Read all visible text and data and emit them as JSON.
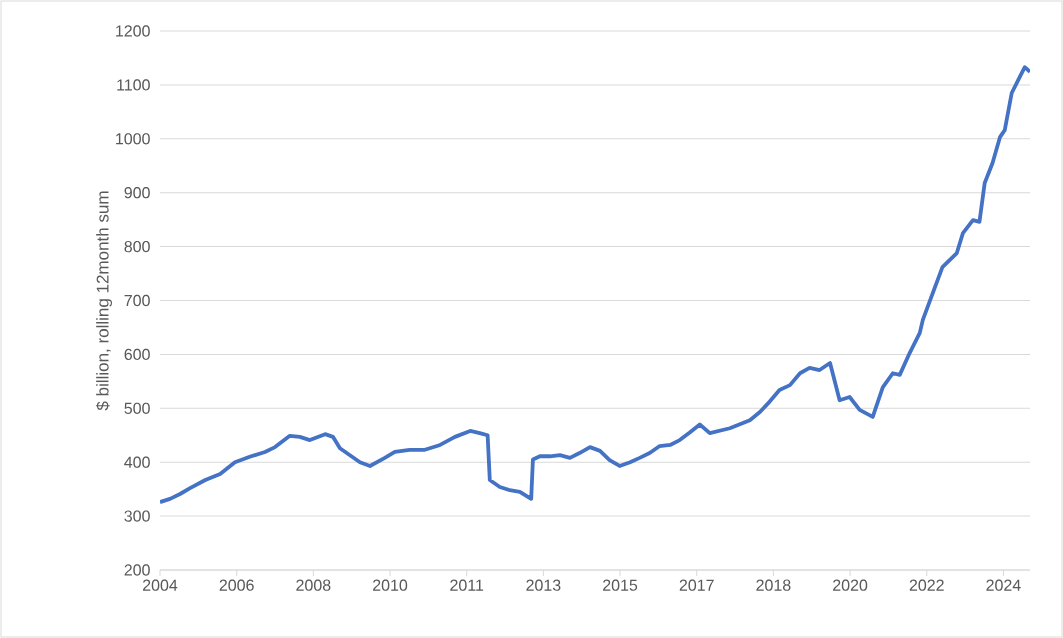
{
  "chart_data": {
    "type": "line",
    "ylabel": "$ billion, rolling 12month sum",
    "x": [
      2004.3,
      2004.53,
      2004.76,
      2004.99,
      2005.34,
      2005.68,
      2006.02,
      2006.36,
      2006.71,
      2006.94,
      2007.28,
      2007.51,
      2007.74,
      2008.09,
      2008.27,
      2008.43,
      2008.66,
      2008.89,
      2009.12,
      2009.46,
      2009.69,
      2010.03,
      2010.38,
      2010.73,
      2011.07,
      2011.42,
      2011.64,
      2011.82,
      2011.87,
      2012.1,
      2012.33,
      2012.56,
      2012.82,
      2012.86,
      2013.02,
      2013.25,
      2013.48,
      2013.71,
      2013.93,
      2014.17,
      2014.4,
      2014.62,
      2014.85,
      2015.09,
      2015.31,
      2015.54,
      2015.77,
      2016.01,
      2016.23,
      2016.46,
      2016.69,
      2016.92,
      2017.38,
      2017.84,
      2018.07,
      2018.29,
      2018.52,
      2018.76,
      2018.99,
      2019.21,
      2019.44,
      2019.68,
      2019.9,
      2020.13,
      2020.36,
      2020.66,
      2020.89,
      2021.12,
      2021.28,
      2021.51,
      2021.74,
      2021.81,
      2022.04,
      2022.26,
      2022.59,
      2022.73,
      2022.96,
      2023.11,
      2023.23,
      2023.41,
      2023.58,
      2023.69,
      2023.85,
      2024.03,
      2024.15,
      2024.27
    ],
    "series": [
      {
        "color": "#4472c4",
        "values": [
          326,
          332,
          341,
          352,
          367,
          378,
          400,
          410,
          419,
          428,
          449,
          447,
          441,
          452,
          447,
          426,
          413,
          400,
          393,
          408,
          419,
          423,
          423,
          432,
          447,
          458,
          454,
          450,
          367,
          354,
          348,
          345,
          332,
          405,
          411,
          411,
          413,
          408,
          417,
          428,
          421,
          404,
          393,
          400,
          408,
          417,
          430,
          432,
          441,
          455,
          470,
          454,
          463,
          478,
          493,
          512,
          534,
          543,
          565,
          575,
          571,
          584,
          515,
          521,
          497,
          484,
          539,
          565,
          562,
          603,
          640,
          664,
          714,
          762,
          788,
          825,
          849,
          846,
          918,
          955,
          1003,
          1016,
          1085,
          1114,
          1133,
          1124
        ]
      }
    ],
    "xlim": [
      2004.3,
      2024.27
    ],
    "xticks": [
      {
        "value": 2004.3,
        "label": "2004"
      },
      {
        "value": 2006.06,
        "label": "2006"
      },
      {
        "value": 2007.82,
        "label": "2008"
      },
      {
        "value": 2009.58,
        "label": "2010"
      },
      {
        "value": 2011.34,
        "label": "2011"
      },
      {
        "value": 2013.1,
        "label": "2013"
      },
      {
        "value": 2014.86,
        "label": "2015"
      },
      {
        "value": 2016.62,
        "label": "2017"
      },
      {
        "value": 2018.38,
        "label": "2018"
      },
      {
        "value": 2020.14,
        "label": "2020"
      },
      {
        "value": 2021.9,
        "label": "2022"
      },
      {
        "value": 2023.66,
        "label": "2024"
      }
    ],
    "ylim": [
      200,
      1200
    ],
    "yticks": [
      200,
      300,
      400,
      500,
      600,
      700,
      800,
      900,
      1000,
      1100,
      1200
    ],
    "grid": "y",
    "marker": "none",
    "line_style": "solid"
  }
}
